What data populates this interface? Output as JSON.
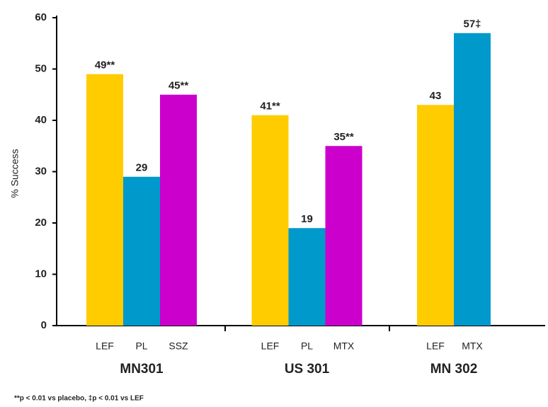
{
  "chart_data": {
    "type": "bar",
    "y_label": "% Success",
    "ylim": [
      0,
      60
    ],
    "yticks": [
      0,
      10,
      20,
      30,
      40,
      50,
      60
    ],
    "groups": [
      {
        "name": "MN301",
        "categories": [
          "LEF",
          "PL",
          "SSZ"
        ],
        "values": [
          49,
          29,
          45
        ],
        "value_labels": [
          "49**",
          "29",
          "45**"
        ],
        "colors": [
          "#ffcc00",
          "#0099cc",
          "#cc00cc"
        ]
      },
      {
        "name": "US 301",
        "categories": [
          "LEF",
          "PL",
          "MTX"
        ],
        "values": [
          41,
          19,
          35
        ],
        "value_labels": [
          "41**",
          "19",
          "35**"
        ],
        "colors": [
          "#ffcc00",
          "#0099cc",
          "#cc00cc"
        ]
      },
      {
        "name": "MN 302",
        "categories": [
          "LEF",
          "MTX"
        ],
        "values": [
          43,
          57
        ],
        "value_labels": [
          "43",
          "57‡"
        ],
        "colors": [
          "#ffcc00",
          "#0099cc"
        ]
      }
    ],
    "footnote": "**p < 0.01 vs placebo, ‡p < 0.01 vs LEF"
  }
}
